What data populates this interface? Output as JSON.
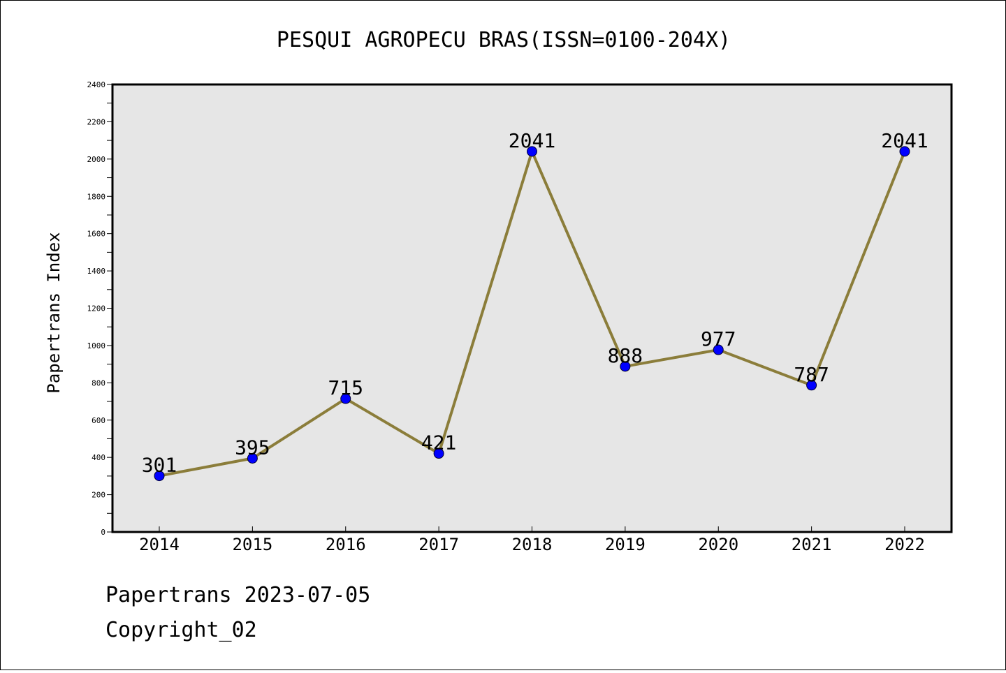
{
  "chart_data": {
    "type": "line",
    "title": "PESQUI AGROPECU BRAS(ISSN=0100-204X)",
    "xlabel": "",
    "ylabel": "Papertrans Index",
    "categories": [
      "2014",
      "2015",
      "2016",
      "2017",
      "2018",
      "2019",
      "2020",
      "2021",
      "2022"
    ],
    "series": [
      {
        "values": [
          301,
          395,
          715,
          421,
          2041,
          888,
          977,
          787,
          2041
        ]
      }
    ],
    "ylim": [
      0,
      2400
    ],
    "yticks": [
      0,
      200,
      400,
      600,
      800,
      1000,
      1200,
      1400,
      1600,
      1800,
      2000,
      2200,
      2400
    ],
    "grid": false,
    "data_labels": true,
    "colors": {
      "line": "#8B7D3A",
      "marker": "#0000FF",
      "plot_background": "#E6E6E6",
      "page_background": "#FFFFFF"
    }
  },
  "footer": {
    "line1": "Papertrans 2023-07-05",
    "line2": "Copyright_02"
  }
}
